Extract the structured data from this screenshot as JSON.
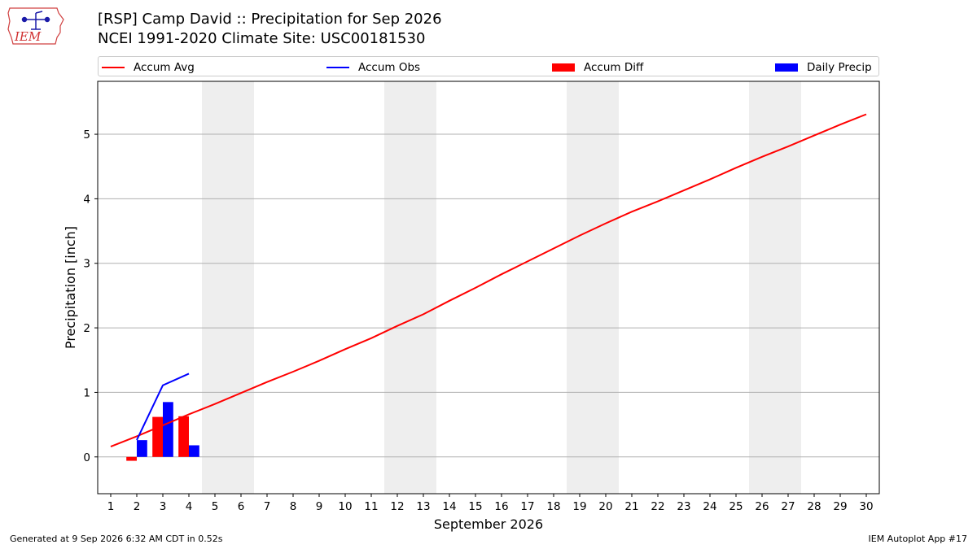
{
  "header": {
    "logo_text": "IEM",
    "title_line1": "[RSP] Camp David :: Precipitation for Sep 2026",
    "title_line2": "NCEI 1991-2020 Climate Site: USC00181530"
  },
  "legend": {
    "items": [
      {
        "label": "Accum Avg",
        "kind": "line",
        "color": "#ff0000"
      },
      {
        "label": "Accum Obs",
        "kind": "line",
        "color": "#0000ff"
      },
      {
        "label": "Accum Diff",
        "kind": "box",
        "color": "#ff0000"
      },
      {
        "label": "Daily Precip",
        "kind": "box",
        "color": "#0000ff"
      }
    ]
  },
  "chart_data": {
    "type": "bar",
    "xlabel": "September 2026",
    "ylabel": "Precipitation [inch]",
    "xlim": [
      0.5,
      30.5
    ],
    "ylim": [
      -0.57,
      5.82
    ],
    "xticks": [
      1,
      2,
      3,
      4,
      5,
      6,
      7,
      8,
      9,
      10,
      11,
      12,
      13,
      14,
      15,
      16,
      17,
      18,
      19,
      20,
      21,
      22,
      23,
      24,
      25,
      26,
      27,
      28,
      29,
      30
    ],
    "yticks": [
      0,
      1,
      2,
      3,
      4,
      5
    ],
    "grid": "horizontal",
    "weekend_shading": [
      [
        4.5,
        6.5
      ],
      [
        11.5,
        13.5
      ],
      [
        18.5,
        20.5
      ],
      [
        25.5,
        27.5
      ]
    ],
    "weekend_color": "#eeeeee",
    "series": [
      {
        "name": "Accum Avg",
        "kind": "line",
        "color": "#ff0000",
        "x": [
          1,
          2,
          3,
          4,
          5,
          6,
          7,
          8,
          9,
          10,
          11,
          12,
          13,
          14,
          15,
          16,
          17,
          18,
          19,
          20,
          21,
          22,
          23,
          24,
          25,
          26,
          27,
          28,
          29,
          30
        ],
        "values": [
          0.16,
          0.32,
          0.49,
          0.66,
          0.82,
          0.99,
          1.16,
          1.32,
          1.49,
          1.67,
          1.84,
          2.03,
          2.21,
          2.42,
          2.62,
          2.83,
          3.03,
          3.23,
          3.43,
          3.62,
          3.8,
          3.96,
          4.13,
          4.3,
          4.48,
          4.65,
          4.81,
          4.98,
          5.15,
          5.31
        ]
      },
      {
        "name": "Accum Obs",
        "kind": "line",
        "color": "#0000ff",
        "x": [
          2,
          3,
          4
        ],
        "values": [
          0.26,
          1.11,
          1.29
        ]
      },
      {
        "name": "Accum Diff",
        "kind": "bar",
        "color": "#ff0000",
        "x": [
          2,
          3,
          4
        ],
        "values": [
          -0.06,
          0.62,
          0.63
        ]
      },
      {
        "name": "Daily Precip",
        "kind": "bar",
        "color": "#0000ff",
        "x": [
          2,
          3,
          4
        ],
        "values": [
          0.26,
          0.85,
          0.18
        ]
      }
    ]
  },
  "footer": {
    "generated": "Generated at 9 Sep 2026 6:32 AM CDT in 0.52s",
    "app": "IEM Autoplot App #17"
  }
}
